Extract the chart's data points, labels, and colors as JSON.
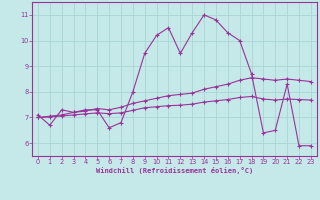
{
  "xlabel": "Windchill (Refroidissement éolien,°C)",
  "ylabel": "",
  "bg_color": "#c5e8e8",
  "line_color": "#993399",
  "grid_color": "#aad4d4",
  "xlim": [
    -0.5,
    23.5
  ],
  "ylim": [
    5.5,
    11.5
  ],
  "xticks": [
    0,
    1,
    2,
    3,
    4,
    5,
    6,
    7,
    8,
    9,
    10,
    11,
    12,
    13,
    14,
    15,
    16,
    17,
    18,
    19,
    20,
    21,
    22,
    23
  ],
  "yticks": [
    6,
    7,
    8,
    9,
    10,
    11
  ],
  "series1": [
    7.1,
    6.7,
    7.3,
    7.2,
    7.3,
    7.3,
    6.6,
    6.8,
    8.0,
    9.5,
    10.2,
    10.5,
    9.5,
    10.3,
    11.0,
    10.8,
    10.3,
    10.0,
    8.7,
    6.4,
    6.5,
    8.3,
    5.9,
    5.9
  ],
  "series2": [
    7.0,
    7.05,
    7.1,
    7.2,
    7.25,
    7.35,
    7.3,
    7.4,
    7.55,
    7.65,
    7.75,
    7.85,
    7.9,
    7.95,
    8.1,
    8.2,
    8.3,
    8.45,
    8.55,
    8.5,
    8.45,
    8.5,
    8.45,
    8.4
  ],
  "series3": [
    7.0,
    7.02,
    7.06,
    7.1,
    7.14,
    7.18,
    7.15,
    7.18,
    7.28,
    7.38,
    7.42,
    7.46,
    7.48,
    7.52,
    7.6,
    7.65,
    7.7,
    7.78,
    7.82,
    7.72,
    7.68,
    7.72,
    7.7,
    7.68
  ]
}
